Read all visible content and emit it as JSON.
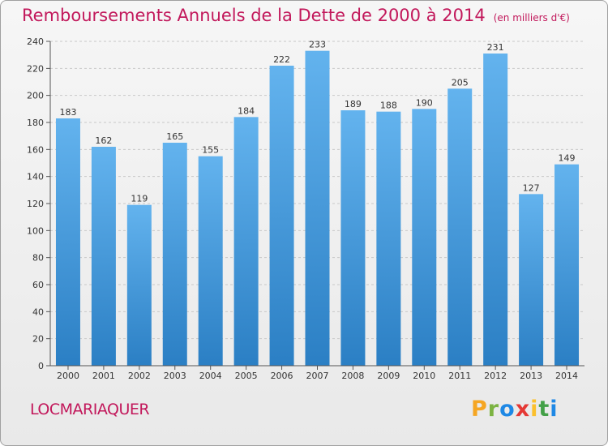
{
  "title": "Remboursements Annuels de la Dette de 2000 à 2014",
  "subtitle": "(en milliers d'€)",
  "city": "LOCMARIAQUER",
  "logo": {
    "letters": [
      "P",
      "r",
      "o",
      "x",
      "i",
      "t",
      "i"
    ],
    "colors": [
      "#f5a623",
      "#7cb342",
      "#1e88e5",
      "#e53935",
      "#fbc02d",
      "#43a047",
      "#1e88e5"
    ]
  },
  "colors": {
    "title": "#c2185b",
    "bar_top": "#63b3ee",
    "bar_bottom": "#2b7fc4"
  },
  "chart_data": {
    "type": "bar",
    "categories": [
      "2000",
      "2001",
      "2002",
      "2003",
      "2004",
      "2005",
      "2006",
      "2007",
      "2008",
      "2009",
      "2010",
      "2011",
      "2012",
      "2013",
      "2014"
    ],
    "values": [
      183,
      162,
      119,
      165,
      155,
      184,
      222,
      233,
      189,
      188,
      190,
      205,
      231,
      127,
      149
    ],
    "ylim": [
      0,
      240
    ],
    "yticks": [
      0,
      20,
      40,
      60,
      80,
      100,
      120,
      140,
      160,
      180,
      200,
      220,
      240
    ],
    "grid": true,
    "xlabel": "",
    "ylabel": ""
  }
}
